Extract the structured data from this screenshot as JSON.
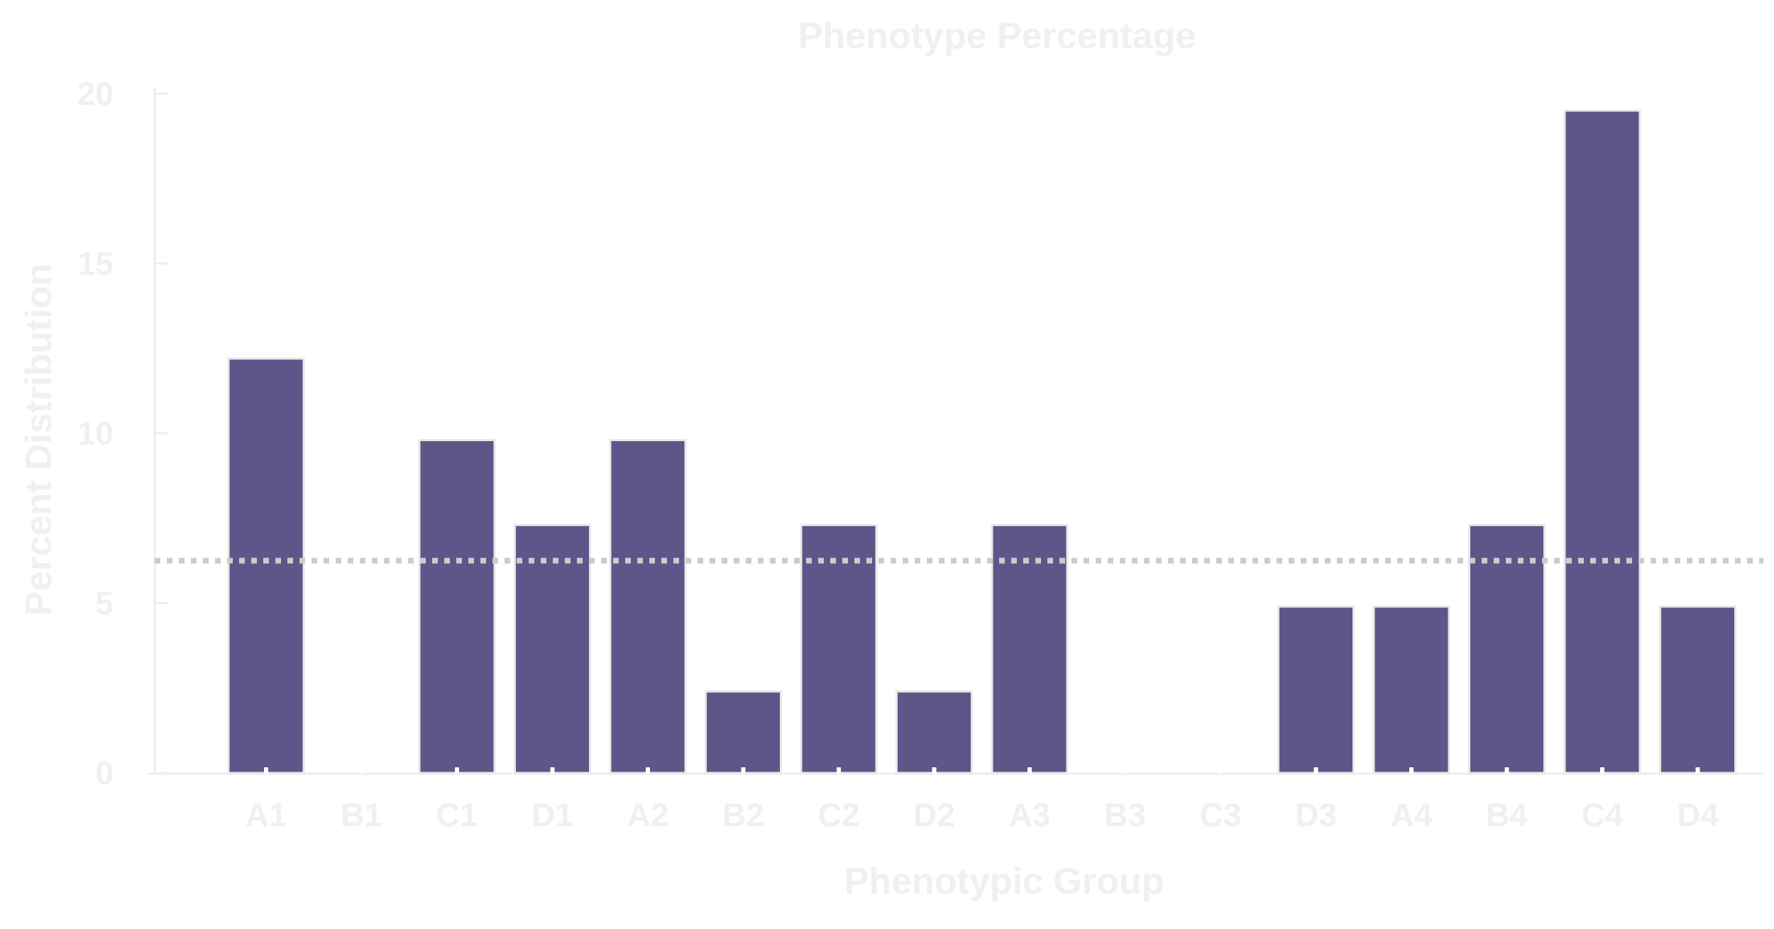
{
  "chart_data": {
    "type": "bar",
    "title": "Phenotype Percentage",
    "xlabel": "Phenotypic Group",
    "ylabel": "Percent Distribution",
    "categories": [
      "A1",
      "B1",
      "C1",
      "D1",
      "A2",
      "B2",
      "C2",
      "D2",
      "A3",
      "B3",
      "C3",
      "D3",
      "A4",
      "B4",
      "C4",
      "D4"
    ],
    "values": [
      12.2,
      0,
      9.8,
      7.3,
      9.8,
      2.4,
      7.3,
      2.4,
      7.3,
      0,
      0,
      4.9,
      4.9,
      7.3,
      19.5,
      4.9
    ],
    "ylim": [
      0,
      20
    ],
    "yticks": [
      0,
      5,
      10,
      15,
      20
    ],
    "reference_line": {
      "value": 6.25,
      "style": "dotted"
    },
    "grid": false,
    "colors": {
      "bar": "#5e5689",
      "bar_edge": "#e8e8e8",
      "axis": "#eeeeee",
      "text": "#f0f0f0",
      "reference_line": "#cccccc"
    }
  }
}
